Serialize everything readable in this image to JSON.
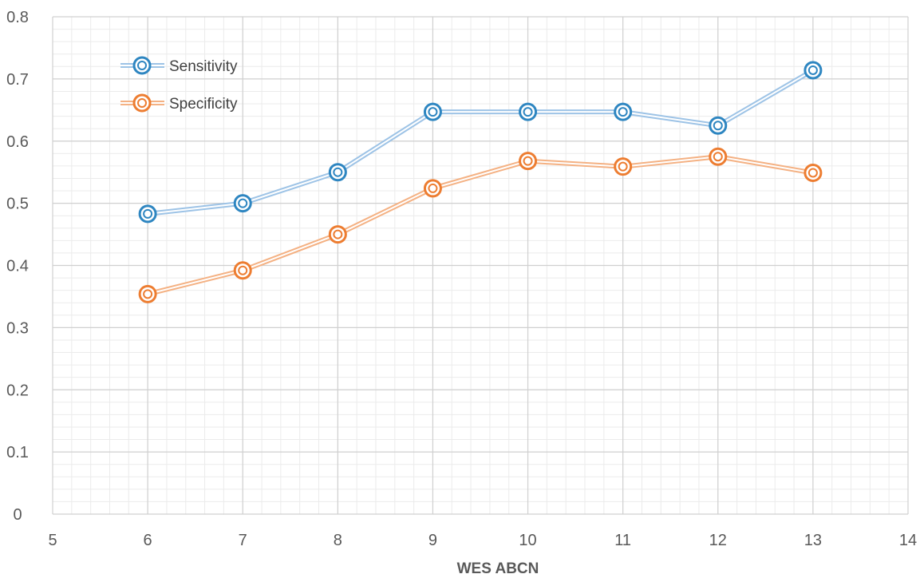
{
  "chart_data": {
    "type": "line",
    "title": "",
    "xlabel": "WES ABCN",
    "ylabel": "",
    "xlim": [
      5,
      14
    ],
    "ylim": [
      0,
      0.8
    ],
    "x_ticks": [
      "5",
      "6",
      "7",
      "8",
      "9",
      "10",
      "11",
      "12",
      "13",
      "14"
    ],
    "y_ticks": [
      "0",
      "0.1",
      "0.2",
      "0.3",
      "0.4",
      "0.5",
      "0.6",
      "0.7",
      "0.8"
    ],
    "grid": "major and minor",
    "legend_position": "top-left",
    "series": [
      {
        "name": "Sensitivity",
        "color": "#2e86c1",
        "line_color": "#9dc3e6",
        "x": [
          6,
          7,
          8,
          9,
          10,
          11,
          12,
          13
        ],
        "values": [
          0.483,
          0.5,
          0.55,
          0.647,
          0.647,
          0.647,
          0.625,
          0.714
        ]
      },
      {
        "name": "Specificity",
        "color": "#ed7d31",
        "line_color": "#f4b183",
        "x": [
          6,
          7,
          8,
          9,
          10,
          11,
          12,
          13
        ],
        "values": [
          0.354,
          0.392,
          0.45,
          0.524,
          0.568,
          0.559,
          0.575,
          0.549
        ]
      }
    ]
  }
}
